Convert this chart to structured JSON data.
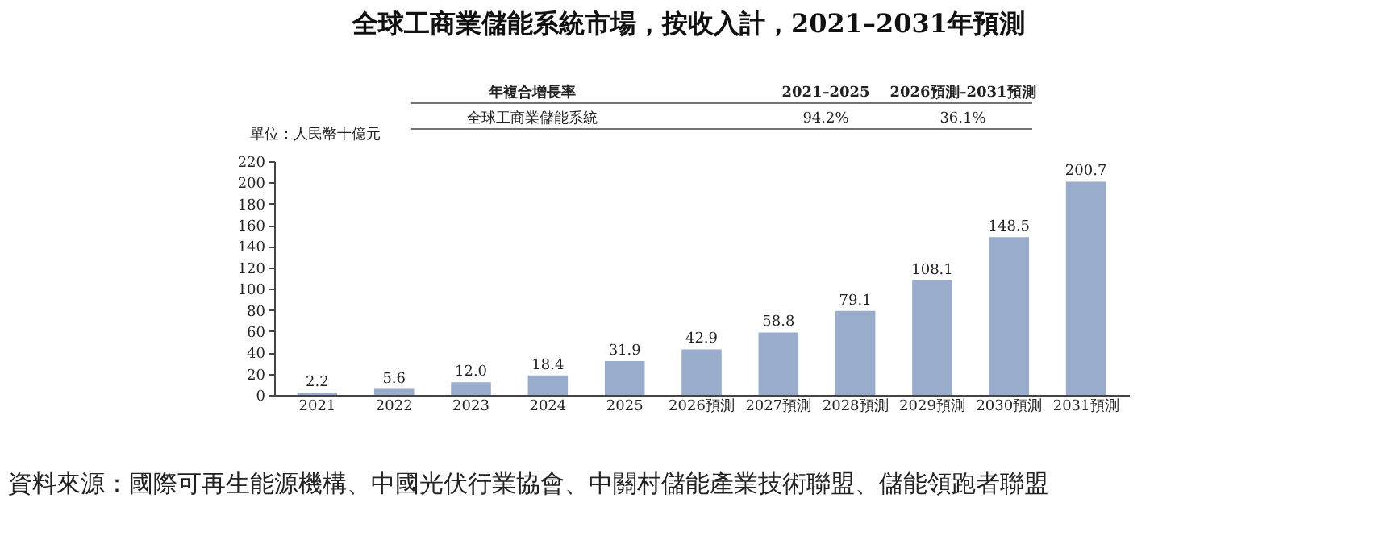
{
  "chart_data": {
    "type": "bar",
    "title": "全球工商業儲能系統市場，按收入計，2021–2031年預測",
    "categories": [
      "2021",
      "2022",
      "2023",
      "2024",
      "2025",
      "2026預測",
      "2027預測",
      "2028預測",
      "2029預測",
      "2030預測",
      "2031預測"
    ],
    "values": [
      2.2,
      5.6,
      12.0,
      18.4,
      31.9,
      42.9,
      58.8,
      79.1,
      108.1,
      148.5,
      200.7
    ],
    "color": "#9aaccb",
    "ylim": [
      0,
      220
    ],
    "yticks": [
      0,
      20,
      40,
      60,
      80,
      100,
      120,
      140,
      160,
      180,
      200,
      220
    ],
    "grid": false,
    "value_labels": [
      "2.2",
      "5.6",
      "12.0",
      "18.4",
      "31.9",
      "42.9",
      "58.8",
      "79.1",
      "108.1",
      "148.5",
      "200.7"
    ],
    "annotations": [
      "年複合增長率",
      "2021–2025",
      "2026預測–2031預測",
      "全球工商業儲能系統",
      "94.2%",
      "36.1%",
      "單位：人民幣十億元",
      "資料來源：國際可再生能源機構、中國光伏行業協會、中關村儲能產業技術聯盟、儲能領跑者聯盟"
    ]
  }
}
